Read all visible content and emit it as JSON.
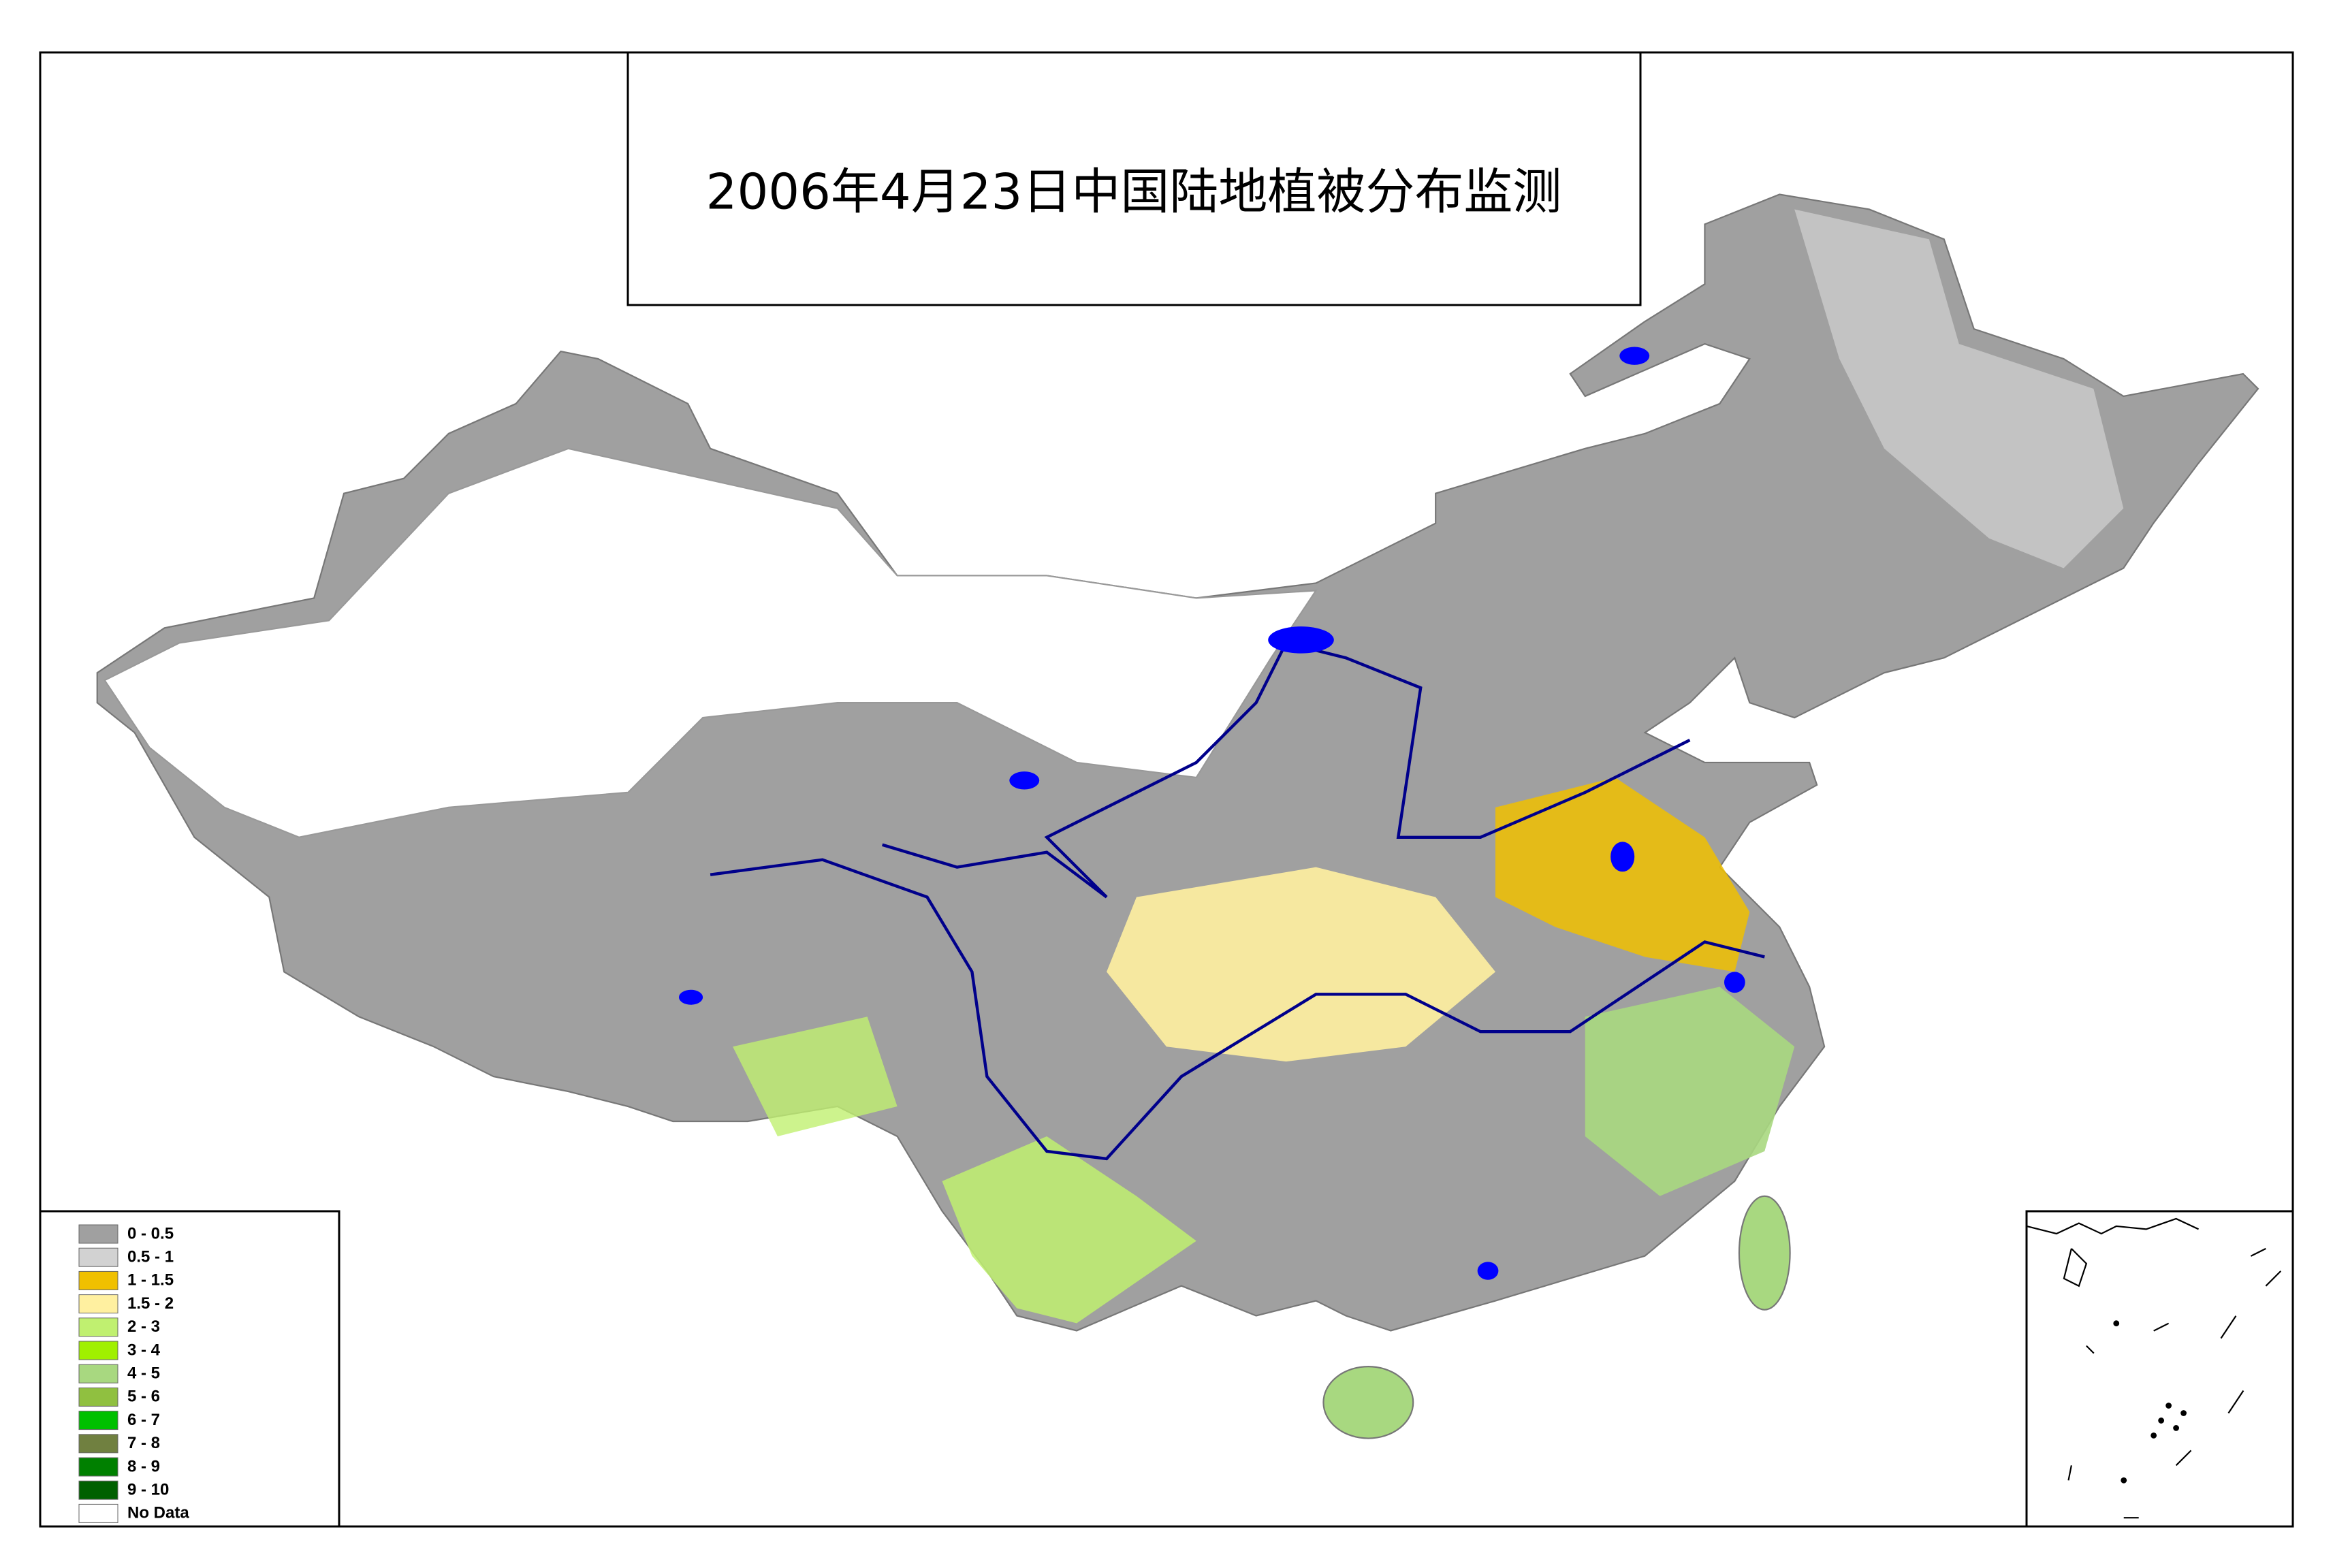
{
  "title": "2006年4月23日中国陆地植被分布监测",
  "legend": {
    "items": [
      {
        "label": "0 - 0.5",
        "color": "#a0a0a0"
      },
      {
        "label": "0.5 - 1",
        "color": "#d2d2d2"
      },
      {
        "label": "1 - 1.5",
        "color": "#f0c000"
      },
      {
        "label": "1.5 - 2",
        "color": "#fff0a0"
      },
      {
        "label": "2 - 3",
        "color": "#c0f070"
      },
      {
        "label": "3 - 4",
        "color": "#a0f000"
      },
      {
        "label": "4 - 5",
        "color": "#a8d880"
      },
      {
        "label": "5 - 6",
        "color": "#90c040"
      },
      {
        "label": "6 - 7",
        "color": "#00c000"
      },
      {
        "label": "7 - 8",
        "color": "#708040"
      },
      {
        "label": "8 - 9",
        "color": "#008000"
      },
      {
        "label": "9 - 10",
        "color": "#006000"
      },
      {
        "label": "No Data",
        "color": "#ffffff"
      }
    ]
  }
}
